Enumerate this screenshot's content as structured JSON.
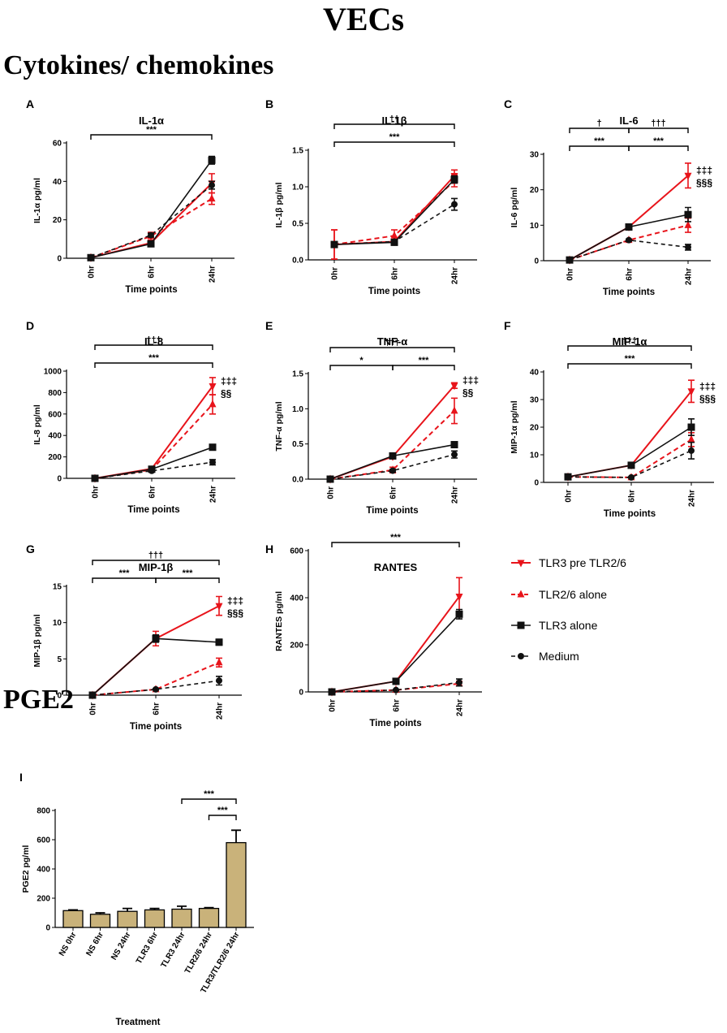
{
  "page": {
    "title": "VECs",
    "section1": "Cytokines/ chemokines",
    "section2": "PGE2"
  },
  "colors": {
    "red": "#e8141b",
    "black": "#111111",
    "bar": "#c9b27a"
  },
  "legend": [
    {
      "label": "TLR3 pre TLR2/6",
      "series": "TLR3 pre TLR2/6"
    },
    {
      "label": "TLR2/6 alone",
      "series": "TLR2/6 alone"
    },
    {
      "label": "TLR3 alone",
      "series": "TLR3 alone"
    },
    {
      "label": "Medium",
      "series": "Medium"
    }
  ],
  "chart_data": [
    {
      "type": "line",
      "panel": "A",
      "title": "IL-1α",
      "ylabel": "IL-1α pg/ml",
      "xlabel": "Time points",
      "categories": [
        "0hr",
        "6hr",
        "24hr"
      ],
      "ylim": [
        0,
        60
      ],
      "yticks": [
        0,
        20,
        40,
        60
      ],
      "series": [
        {
          "name": "TLR3 pre TLR2/6",
          "values": [
            0.3,
            8,
            39
          ],
          "err": [
            0.3,
            1,
            5
          ]
        },
        {
          "name": "TLR2/6 alone",
          "values": [
            0.3,
            11.5,
            31
          ],
          "err": [
            0.3,
            2,
            3
          ]
        },
        {
          "name": "TLR3 alone",
          "values": [
            0.3,
            7.5,
            51
          ],
          "err": [
            0.3,
            1,
            2
          ]
        },
        {
          "name": "Medium",
          "values": [
            0.3,
            12,
            38
          ],
          "err": [
            0.3,
            1,
            2
          ]
        }
      ],
      "annotations": {
        "brackets": [
          {
            "from": 0,
            "to": 2,
            "label": "***"
          }
        ]
      }
    },
    {
      "type": "line",
      "panel": "B",
      "title": "IL-1β",
      "ylabel": "IL-1β pg/ml",
      "xlabel": "Time points",
      "categories": [
        "0hr",
        "6hr",
        "24hr"
      ],
      "ylim": [
        0,
        1.5
      ],
      "yticks": [
        0,
        0.5,
        1.0,
        1.5
      ],
      "series": [
        {
          "name": "TLR3 pre TLR2/6",
          "values": [
            0.21,
            0.25,
            1.15
          ],
          "err": [
            0.2,
            0.03,
            0.08
          ]
        },
        {
          "name": "TLR2/6 alone",
          "values": [
            0.21,
            0.33,
            1.08
          ],
          "err": [
            0.2,
            0.08,
            0.08
          ]
        },
        {
          "name": "TLR3 alone",
          "values": [
            0.21,
            0.24,
            1.1
          ],
          "err": [
            0.02,
            0.02,
            0.05
          ]
        },
        {
          "name": "Medium",
          "values": [
            0.21,
            0.25,
            0.76
          ],
          "err": [
            0.02,
            0.02,
            0.08
          ]
        }
      ],
      "annotations": {
        "brackets": [
          {
            "from": 0,
            "to": 2,
            "label": "††"
          },
          {
            "from": 0,
            "to": 2,
            "label": "***"
          }
        ]
      }
    },
    {
      "type": "line",
      "panel": "C",
      "title": "IL-6",
      "ylabel": "IL-6 pg/ml",
      "xlabel": "Time points",
      "categories": [
        "0hr",
        "6hr",
        "24hr"
      ],
      "ylim": [
        0,
        30
      ],
      "yticks": [
        0,
        10,
        20,
        30
      ],
      "series": [
        {
          "name": "TLR3 pre TLR2/6",
          "values": [
            0.2,
            9.5,
            24
          ],
          "err": [
            0.1,
            0.3,
            3.5
          ]
        },
        {
          "name": "TLR2/6 alone",
          "values": [
            0.2,
            5.8,
            10
          ],
          "err": [
            0.1,
            0.3,
            2
          ]
        },
        {
          "name": "TLR3 alone",
          "values": [
            0.2,
            9.5,
            13
          ],
          "err": [
            0.1,
            0.3,
            2
          ]
        },
        {
          "name": "Medium",
          "values": [
            0.2,
            5.8,
            3.8
          ],
          "err": [
            0.1,
            0.3,
            0.8
          ]
        }
      ],
      "annotations": {
        "brackets": [
          {
            "from": 0,
            "to": 1,
            "label": "†"
          },
          {
            "from": 1,
            "to": 2,
            "label": "†††"
          },
          {
            "from": 0,
            "to": 1,
            "label": "***"
          },
          {
            "from": 1,
            "to": 2,
            "label": "***"
          }
        ],
        "marks": [
          "‡‡‡",
          "§§§"
        ]
      }
    },
    {
      "type": "line",
      "panel": "D",
      "title": "IL-8",
      "ylabel": "IL-8 pg/ml",
      "xlabel": "Time points",
      "categories": [
        "0hr",
        "6hr",
        "24hr"
      ],
      "ylim": [
        0,
        1000
      ],
      "yticks": [
        0,
        200,
        400,
        600,
        800,
        1000
      ],
      "series": [
        {
          "name": "TLR3 pre TLR2/6",
          "values": [
            0,
            90,
            860
          ],
          "err": [
            0,
            10,
            80
          ]
        },
        {
          "name": "TLR2/6 alone",
          "values": [
            0,
            80,
            690
          ],
          "err": [
            0,
            10,
            90
          ]
        },
        {
          "name": "TLR3 alone",
          "values": [
            0,
            85,
            290
          ],
          "err": [
            0,
            10,
            20
          ]
        },
        {
          "name": "Medium",
          "values": [
            0,
            70,
            150
          ],
          "err": [
            0,
            10,
            25
          ]
        }
      ],
      "annotations": {
        "brackets": [
          {
            "from": 0,
            "to": 2,
            "label": "†††"
          },
          {
            "from": 0,
            "to": 2,
            "label": "***"
          }
        ],
        "marks": [
          "‡‡‡",
          "§§"
        ]
      }
    },
    {
      "type": "line",
      "panel": "E",
      "title": "TNF-α",
      "ylabel": "TNF-α pg/ml",
      "xlabel": "Time points",
      "categories": [
        "0hr",
        "6hr",
        "24hr"
      ],
      "ylim": [
        0,
        1.5
      ],
      "yticks": [
        0,
        0.5,
        1.0,
        1.5
      ],
      "series": [
        {
          "name": "TLR3 pre TLR2/6",
          "values": [
            0,
            0.32,
            1.33
          ],
          "err": [
            0,
            0.03,
            0.04
          ]
        },
        {
          "name": "TLR2/6 alone",
          "values": [
            0,
            0.13,
            0.97
          ],
          "err": [
            0,
            0.04,
            0.18
          ]
        },
        {
          "name": "TLR3 alone",
          "values": [
            0,
            0.33,
            0.49
          ],
          "err": [
            0,
            0.03,
            0.03
          ]
        },
        {
          "name": "Medium",
          "values": [
            0,
            0.12,
            0.35
          ],
          "err": [
            0,
            0.02,
            0.05
          ]
        }
      ],
      "annotations": {
        "brackets": [
          {
            "from": 0,
            "to": 2,
            "label": "†††"
          },
          {
            "from": 0,
            "to": 1,
            "label": "*"
          },
          {
            "from": 1,
            "to": 2,
            "label": "***"
          }
        ],
        "marks": [
          "‡‡‡",
          "§§"
        ]
      }
    },
    {
      "type": "line",
      "panel": "F",
      "title": "MIP-1α",
      "ylabel": "MIP-1α pg/ml",
      "xlabel": "Time points",
      "categories": [
        "0hr",
        "6hr",
        "24hr"
      ],
      "ylim": [
        0,
        40
      ],
      "yticks": [
        0,
        10,
        20,
        30,
        40
      ],
      "series": [
        {
          "name": "TLR3 pre TLR2/6",
          "values": [
            2,
            6.2,
            33
          ],
          "err": [
            0.3,
            0.5,
            4
          ]
        },
        {
          "name": "TLR2/6 alone",
          "values": [
            2,
            1.8,
            15.5
          ],
          "err": [
            0.3,
            0.2,
            2.5
          ]
        },
        {
          "name": "TLR3 alone",
          "values": [
            2,
            6.2,
            20
          ],
          "err": [
            0.3,
            0.5,
            3
          ]
        },
        {
          "name": "Medium",
          "values": [
            2,
            1.8,
            11.5
          ],
          "err": [
            0.3,
            0.2,
            3
          ]
        }
      ],
      "annotations": {
        "brackets": [
          {
            "from": 0,
            "to": 2,
            "label": "†††"
          },
          {
            "from": 0,
            "to": 2,
            "label": "***"
          }
        ],
        "marks": [
          "‡‡‡",
          "§§§"
        ]
      }
    },
    {
      "type": "line",
      "panel": "G",
      "title": "MIP-1β",
      "ylabel": "MIP-1β pg/ml",
      "xlabel": "Time points",
      "categories": [
        "0hr",
        "6hr",
        "24hr"
      ],
      "ylim": [
        0,
        15
      ],
      "yticks": [
        0,
        5,
        10,
        15
      ],
      "series": [
        {
          "name": "TLR3 pre TLR2/6",
          "values": [
            0,
            7.8,
            12.3
          ],
          "err": [
            0,
            1,
            1.3
          ]
        },
        {
          "name": "TLR2/6 alone",
          "values": [
            0,
            0.8,
            4.5
          ],
          "err": [
            0,
            0.1,
            0.6
          ]
        },
        {
          "name": "TLR3 alone",
          "values": [
            0,
            7.8,
            7.3
          ],
          "err": [
            0,
            0.5,
            0.4
          ]
        },
        {
          "name": "Medium",
          "values": [
            0,
            0.8,
            2
          ],
          "err": [
            0,
            0.1,
            0.6
          ]
        }
      ],
      "annotations": {
        "brackets": [
          {
            "from": 0,
            "to": 2,
            "label": "†††"
          },
          {
            "from": 0,
            "to": 1,
            "label": "***"
          },
          {
            "from": 1,
            "to": 2,
            "label": "***"
          }
        ],
        "marks": [
          "‡‡‡",
          "§§§"
        ]
      }
    },
    {
      "type": "line",
      "panel": "H",
      "title": "RANTES",
      "ylabel": "RANTES pg/ml",
      "xlabel": "Time points",
      "categories": [
        "0hr",
        "6hr",
        "24hr"
      ],
      "ylim": [
        0,
        600
      ],
      "yticks": [
        0,
        200,
        400,
        600
      ],
      "series": [
        {
          "name": "TLR3 pre TLR2/6",
          "values": [
            0,
            45,
            405
          ],
          "err": [
            0,
            5,
            80
          ]
        },
        {
          "name": "TLR2/6 alone",
          "values": [
            0,
            8,
            35
          ],
          "err": [
            0,
            2,
            10
          ]
        },
        {
          "name": "TLR3 alone",
          "values": [
            0,
            45,
            330
          ],
          "err": [
            0,
            5,
            20
          ]
        },
        {
          "name": "Medium",
          "values": [
            0,
            8,
            40
          ],
          "err": [
            0,
            2,
            15
          ]
        }
      ],
      "annotations": {
        "brackets": [
          {
            "from": 0,
            "to": 2,
            "label": "***"
          }
        ]
      }
    },
    {
      "type": "bar",
      "panel": "I",
      "title": "",
      "ylabel": "PGE2 pg/ml",
      "xlabel": "Treatment",
      "categories": [
        "NS 0hr",
        "NS 6hr",
        "NS 24hr",
        "TLR3 6hr",
        "TLR3 24hr",
        "TLR2/6 24hr",
        "TLR3/TLR2/6 24hr"
      ],
      "values": [
        115,
        90,
        110,
        120,
        125,
        130,
        580
      ],
      "err": [
        5,
        10,
        20,
        10,
        20,
        5,
        85
      ],
      "ylim": [
        0,
        800
      ],
      "yticks": [
        0,
        200,
        400,
        600,
        800
      ],
      "annotations": {
        "brackets": [
          {
            "from": 4,
            "to": 6,
            "label": "***"
          },
          {
            "from": 5,
            "to": 6,
            "label": "***"
          }
        ]
      }
    }
  ]
}
